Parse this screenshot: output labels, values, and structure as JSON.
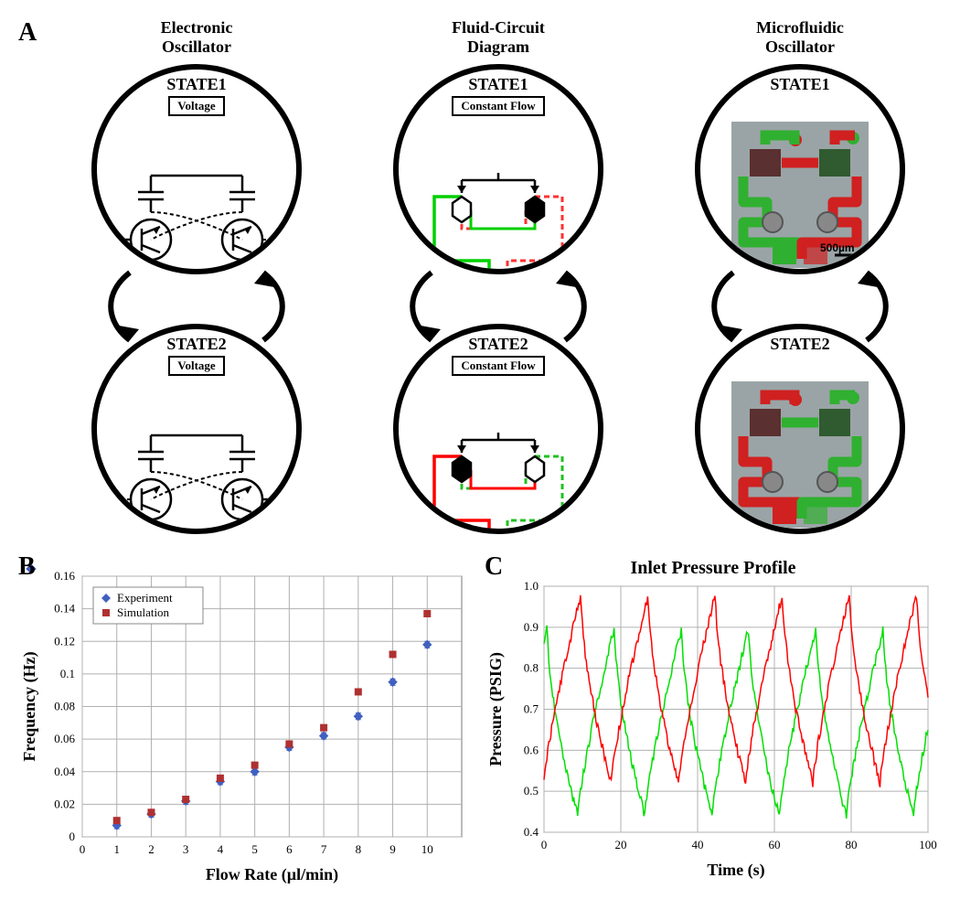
{
  "panelA": {
    "label": "A",
    "columns": [
      {
        "title_line1": "Electronic",
        "title_line2": "Oscillator",
        "box_label": "Voltage",
        "type": "electronic"
      },
      {
        "title_line1": "Fluid-Circuit",
        "title_line2": "Diagram",
        "box_label": "Constant Flow",
        "type": "fluid"
      },
      {
        "title_line1": "Microfluidic",
        "title_line2": "Oscillator",
        "box_label": "",
        "type": "micro"
      }
    ],
    "state1_label": "STATE1",
    "state2_label": "STATE2",
    "scale_bar": "500µm",
    "colors": {
      "active": "#ff0000",
      "inactive": "#00d000",
      "dashed_active": "#ff3030",
      "dashed_inactive": "#20c020",
      "circle_stroke": "#000000",
      "micro_bg": "#9aa4a6",
      "micro_red": "#d02020",
      "micro_green": "#30b030"
    }
  },
  "panelB": {
    "label": "B",
    "xlabel": "Flow Rate (µl/min)",
    "ylabel": "Frequency (Hz)",
    "xlim": [
      0,
      11
    ],
    "ylim": [
      0,
      0.16
    ],
    "xticks": [
      0,
      1,
      2,
      3,
      4,
      5,
      6,
      7,
      8,
      9,
      10
    ],
    "yticks": [
      0,
      0.02,
      0.04,
      0.06,
      0.08,
      0.1,
      0.12,
      0.14,
      0.16
    ],
    "grid_color": "#b0b0b0",
    "background_color": "#ffffff",
    "tick_fontsize": 13,
    "label_fontsize": 18,
    "legend": [
      {
        "label": "Experiment",
        "color": "#4060c0",
        "marker": "diamond"
      },
      {
        "label": "Simulation",
        "color": "#b03030",
        "marker": "square"
      }
    ],
    "series": {
      "experiment": {
        "color": "#4060c0",
        "marker": "diamond",
        "points": [
          {
            "x": 1,
            "y": 0.007
          },
          {
            "x": 2,
            "y": 0.014
          },
          {
            "x": 3,
            "y": 0.022
          },
          {
            "x": 4,
            "y": 0.034
          },
          {
            "x": 5,
            "y": 0.04
          },
          {
            "x": 6,
            "y": 0.055
          },
          {
            "x": 7,
            "y": 0.062
          },
          {
            "x": 8,
            "y": 0.074
          },
          {
            "x": 9,
            "y": 0.095
          },
          {
            "x": 10,
            "y": 0.118
          }
        ],
        "err": 0.002
      },
      "simulation": {
        "color": "#b03030",
        "marker": "square",
        "points": [
          {
            "x": 1,
            "y": 0.01
          },
          {
            "x": 2,
            "y": 0.015
          },
          {
            "x": 3,
            "y": 0.023
          },
          {
            "x": 4,
            "y": 0.036
          },
          {
            "x": 5,
            "y": 0.044
          },
          {
            "x": 6,
            "y": 0.057
          },
          {
            "x": 7,
            "y": 0.067
          },
          {
            "x": 8,
            "y": 0.089
          },
          {
            "x": 9,
            "y": 0.112
          },
          {
            "x": 10,
            "y": 0.137
          }
        ]
      }
    }
  },
  "panelC": {
    "label": "C",
    "title": "Inlet Pressure Profile",
    "xlabel": "Time (s)",
    "ylabel": "Pressure (PSIG)",
    "xlim": [
      0,
      100
    ],
    "ylim": [
      0.4,
      1.0
    ],
    "xticks": [
      0,
      20,
      40,
      60,
      80,
      100
    ],
    "yticks": [
      0.4,
      0.5,
      0.6,
      0.7,
      0.8,
      0.9,
      1.0
    ],
    "grid_color": "#b0b0b0",
    "tick_fontsize": 13,
    "label_fontsize": 18,
    "series": {
      "red": {
        "color": "#ff0000",
        "line_width": 1.5,
        "period": 17.5,
        "phase": 0,
        "low": 0.52,
        "high": 0.98,
        "rise_frac": 0.55,
        "noise": 0.012
      },
      "green": {
        "color": "#00e000",
        "line_width": 1.5,
        "period": 17.5,
        "phase": 8.75,
        "low": 0.44,
        "high": 0.9,
        "rise_frac": 0.55,
        "noise": 0.012
      }
    }
  }
}
